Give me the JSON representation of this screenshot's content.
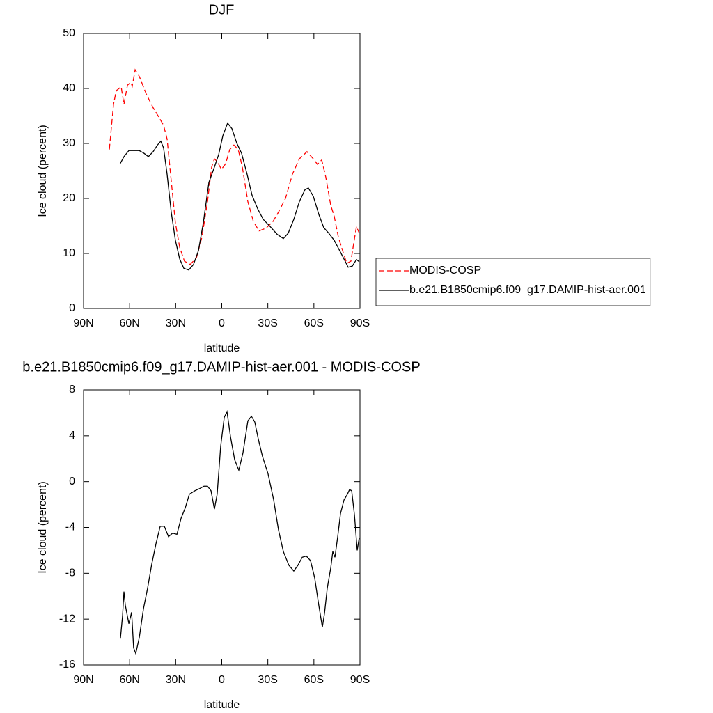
{
  "chart_data": [
    {
      "type": "line",
      "title": "DJF",
      "xlabel": "latitude",
      "ylabel": "Ice cloud (percent)",
      "xlim": [
        90,
        -90
      ],
      "xticks": [
        {
          "value": 90,
          "label": "90N"
        },
        {
          "value": 60,
          "label": "60N"
        },
        {
          "value": 30,
          "label": "30N"
        },
        0,
        {
          "value": -30,
          "label": "30S"
        },
        {
          "value": -60,
          "label": "60S"
        },
        {
          "value": -90,
          "label": "90S"
        }
      ],
      "ylim": [
        0,
        50
      ],
      "yticks": [
        0,
        10,
        20,
        30,
        40,
        50
      ],
      "legend": "right",
      "series": [
        {
          "name": "MODIS-COSP",
          "color": "#ff0000",
          "dashed": true,
          "x": [
            73.2,
            70.5,
            68.7,
            65.5,
            63.7,
            61.4,
            59.2,
            58.3,
            56.4,
            53.7,
            49.2,
            44.7,
            41.0,
            37.9,
            35.6,
            32.9,
            30.2,
            27.4,
            24.3,
            20.6,
            16.5,
            12.9,
            9.3,
            6.6,
            4.8,
            3.0,
            0.2,
            -2.5,
            -5.2,
            -7.9,
            -10.7,
            -13.4,
            -17.0,
            -20.6,
            -24.3,
            -28.8,
            -33.3,
            -36.9,
            -41.5,
            -46.0,
            -50.5,
            -55.5,
            -59.6,
            -62.3,
            -65.1,
            -67.8,
            -71.0,
            -73.2,
            -75.9,
            -78.7,
            -81.4,
            -84.1,
            -85.9,
            -87.7,
            -89.5
          ],
          "values": [
            28.9,
            37.1,
            39.6,
            40.3,
            37.1,
            40.6,
            41.1,
            40.4,
            43.4,
            42.2,
            39.0,
            36.5,
            34.8,
            33.3,
            30.8,
            23.2,
            15.6,
            11.1,
            8.6,
            8.0,
            9.2,
            13.0,
            19.4,
            25.7,
            27.2,
            26.7,
            25.3,
            26.3,
            28.9,
            29.7,
            28.9,
            25.7,
            19.4,
            15.8,
            14.1,
            14.6,
            15.8,
            17.5,
            20.0,
            24.4,
            27.2,
            28.5,
            27.2,
            26.2,
            27.0,
            23.8,
            18.7,
            16.8,
            13.0,
            10.5,
            8.2,
            8.6,
            11.8,
            14.9,
            13.7
          ]
        },
        {
          "name": "b.e21.B1850cmip6.f09_g17.DAMIP-hist-aer.001",
          "color": "#000000",
          "dashed": false,
          "x": [
            66.4,
            63.7,
            60.5,
            56.9,
            53.7,
            50.6,
            47.8,
            44.7,
            41.9,
            39.7,
            37.9,
            35.6,
            32.9,
            30.2,
            27.4,
            24.7,
            21.5,
            18.4,
            15.2,
            12.0,
            8.4,
            4.8,
            2.0,
            -0.7,
            -3.8,
            -6.6,
            -9.7,
            -12.9,
            -16.5,
            -19.7,
            -23.4,
            -27.0,
            -31.5,
            -36.0,
            -40.1,
            -43.3,
            -46.9,
            -50.5,
            -54.2,
            -56.4,
            -59.6,
            -63.2,
            -66.4,
            -69.6,
            -73.2,
            -76.8,
            -79.6,
            -82.3,
            -85.0,
            -87.7,
            -89.5
          ],
          "values": [
            26.2,
            27.6,
            28.7,
            28.7,
            28.7,
            28.2,
            27.6,
            28.5,
            29.7,
            30.4,
            29.2,
            24.4,
            17.5,
            12.4,
            9.0,
            7.3,
            7.0,
            8.0,
            10.5,
            15.6,
            22.9,
            25.7,
            28.0,
            31.4,
            33.7,
            32.7,
            30.1,
            28.2,
            24.4,
            20.6,
            18.1,
            16.2,
            14.9,
            13.5,
            12.7,
            13.7,
            16.2,
            19.4,
            21.6,
            21.9,
            20.4,
            17.1,
            14.7,
            13.7,
            12.4,
            10.5,
            9.0,
            7.5,
            7.7,
            8.9,
            8.5
          ]
        }
      ]
    },
    {
      "type": "line",
      "title": "b.e21.B1850cmip6.f09_g17.DAMIP-hist-aer.001 - MODIS-COSP",
      "xlabel": "latitude",
      "ylabel": "Ice cloud (percent)",
      "xlim": [
        90,
        -90
      ],
      "xticks": [
        {
          "value": 90,
          "label": "90N"
        },
        {
          "value": 60,
          "label": "60N"
        },
        {
          "value": 30,
          "label": "30N"
        },
        0,
        {
          "value": -30,
          "label": "30S"
        },
        {
          "value": -60,
          "label": "60S"
        },
        {
          "value": -90,
          "label": "90S"
        }
      ],
      "ylim": [
        -16,
        8
      ],
      "yticks": [
        -16,
        -12,
        -8,
        -4,
        0,
        4,
        8
      ],
      "series": [
        {
          "color": "#000000",
          "dashed": false,
          "x": [
            66.0,
            64.6,
            63.7,
            62.8,
            60.5,
            58.7,
            57.4,
            56.0,
            53.7,
            51.0,
            48.3,
            45.6,
            42.8,
            40.1,
            37.4,
            34.7,
            32.0,
            29.2,
            26.5,
            23.8,
            21.1,
            17.5,
            14.3,
            11.6,
            9.3,
            7.0,
            4.8,
            3.0,
            0.7,
            -1.6,
            -3.4,
            -5.7,
            -8.4,
            -11.1,
            -13.8,
            -17.0,
            -19.3,
            -21.5,
            -23.8,
            -26.5,
            -30.1,
            -33.8,
            -36.9,
            -40.1,
            -43.7,
            -46.9,
            -49.6,
            -52.4,
            -55.1,
            -57.8,
            -60.5,
            -63.2,
            -65.5,
            -66.9,
            -68.7,
            -71.0,
            -72.3,
            -73.7,
            -75.5,
            -77.3,
            -79.6,
            -81.8,
            -83.2,
            -84.6,
            -86.4,
            -88.2,
            -89.5
          ],
          "values": [
            -13.7,
            -11.7,
            -9.6,
            -10.8,
            -12.4,
            -11.4,
            -14.5,
            -15.0,
            -13.6,
            -11.1,
            -9.3,
            -7.2,
            -5.4,
            -3.9,
            -3.9,
            -4.8,
            -4.5,
            -4.6,
            -3.2,
            -2.3,
            -1.1,
            -0.8,
            -0.6,
            -0.4,
            -0.4,
            -0.8,
            -2.4,
            -1.1,
            3.1,
            5.6,
            6.1,
            3.9,
            1.9,
            1.0,
            2.5,
            5.3,
            5.7,
            5.2,
            3.7,
            2.2,
            0.7,
            -1.6,
            -4.2,
            -6.1,
            -7.3,
            -7.8,
            -7.3,
            -6.6,
            -6.5,
            -6.9,
            -8.4,
            -10.8,
            -12.7,
            -11.5,
            -9.3,
            -7.5,
            -6.1,
            -6.6,
            -4.8,
            -2.8,
            -1.6,
            -1.1,
            -0.7,
            -0.8,
            -2.9,
            -6.0,
            -4.9
          ]
        }
      ]
    }
  ]
}
